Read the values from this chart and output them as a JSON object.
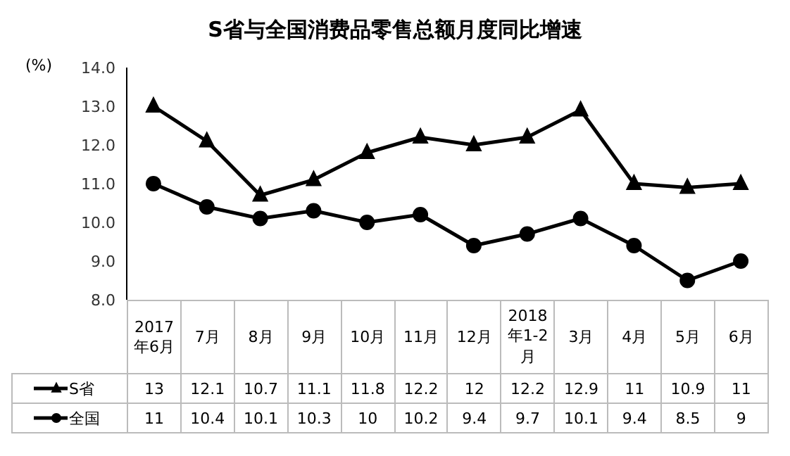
{
  "chart_data": {
    "type": "line",
    "title": "S省与全国消费品零售总额月度同比增速",
    "ylabel": "(%)",
    "categories": [
      "2017年6月",
      "7月",
      "8月",
      "9月",
      "10月",
      "11月",
      "12月",
      "2018年1-2月",
      "3月",
      "4月",
      "5月",
      "6月"
    ],
    "series": [
      {
        "name": "S省",
        "color": "#000000",
        "marker": "triangle",
        "values": [
          13,
          12.1,
          10.7,
          11.1,
          11.8,
          12.2,
          12,
          12.2,
          12.9,
          11,
          10.9,
          11
        ]
      },
      {
        "name": "全国",
        "color": "#000000",
        "marker": "circle",
        "values": [
          11,
          10.4,
          10.1,
          10.3,
          10,
          10.2,
          9.4,
          9.7,
          10.1,
          9.4,
          8.5,
          9
        ]
      }
    ],
    "ylim": [
      8,
      14
    ],
    "yticks": [
      {
        "value": 8,
        "label": "8.0"
      },
      {
        "value": 9,
        "label": "9.0"
      },
      {
        "value": 10,
        "label": "10.0"
      },
      {
        "value": 11,
        "label": "11.0"
      },
      {
        "value": 12,
        "label": "12.0"
      },
      {
        "value": 13,
        "label": "13.0"
      },
      {
        "value": 14,
        "label": "14.0"
      }
    ],
    "grid": false,
    "legend": "bottom",
    "data_labels": true
  }
}
